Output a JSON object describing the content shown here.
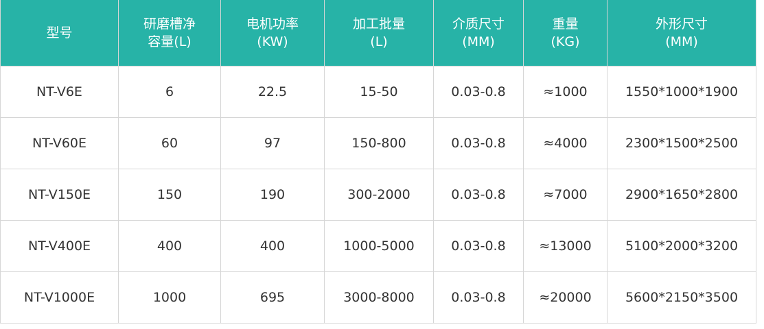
{
  "table": {
    "header": [
      [
        "型号"
      ],
      [
        "研磨槽净",
        "容量(L)"
      ],
      [
        "电机功率",
        "(KW)"
      ],
      [
        "加工批量",
        "(L)"
      ],
      [
        "介质尺寸",
        "(MM)"
      ],
      [
        "重量",
        "(KG)"
      ],
      [
        "外形尺寸",
        "(MM)"
      ]
    ],
    "rows": [
      [
        "NT-V6E",
        "6",
        "22.5",
        "15-50",
        "0.03-0.8",
        "≈1000",
        "1550*1000*1900"
      ],
      [
        "NT-V60E",
        "60",
        "97",
        "150-800",
        "0.03-0.8",
        "≈4000",
        "2300*1500*2500"
      ],
      [
        "NT-V150E",
        "150",
        "190",
        "300-2000",
        "0.03-0.8",
        "≈7000",
        "2900*1650*2800"
      ],
      [
        "NT-V400E",
        "400",
        "400",
        "1000-5000",
        "0.03-0.8",
        "≈13000",
        "5100*2000*3200"
      ],
      [
        "NT-V1000E",
        "1000",
        "695",
        "3000-8000",
        "0.03-0.8",
        "≈20000",
        "5600*2150*3500"
      ]
    ]
  }
}
